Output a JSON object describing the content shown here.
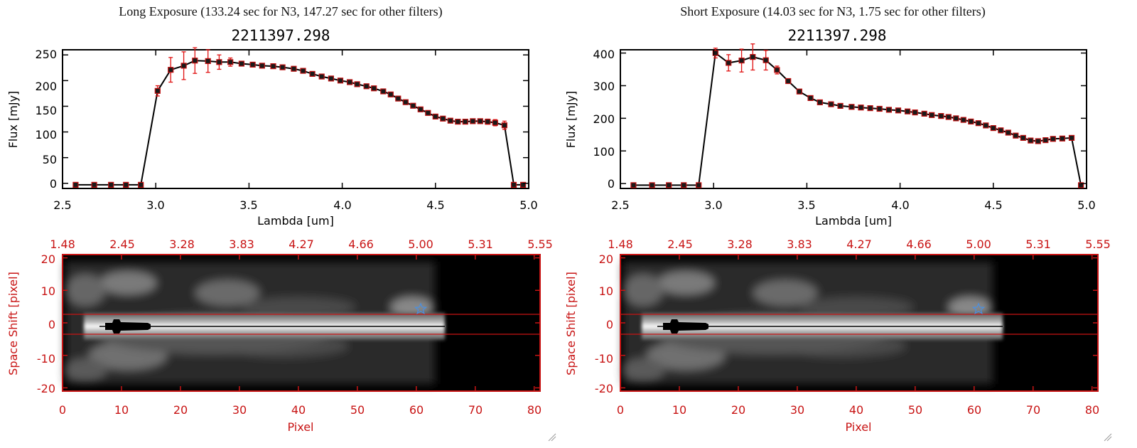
{
  "panels": [
    {
      "header": "Long Exposure (133.24 sec for N3, 147.27 sec for other filters)",
      "spectrum": {
        "title": "2211397.298",
        "xlabel": "Lambda [um]",
        "ylabel": "Flux [mJy]",
        "xlim": [
          2.5,
          5.0
        ],
        "ylim": [
          -10,
          260
        ],
        "xticks": [
          "2.5",
          "3.0",
          "3.5",
          "4.0",
          "4.5",
          "5.0"
        ],
        "xtick_values": [
          2.5,
          3.0,
          3.5,
          4.0,
          4.5,
          5.0
        ],
        "yticks": [
          "0",
          "50",
          "100",
          "150",
          "200",
          "250"
        ],
        "ytick_values": [
          0,
          50,
          100,
          150,
          200,
          250
        ]
      },
      "image": {
        "xlabel": "Pixel",
        "ylabel": "Space Shift [pixel]",
        "xlim": [
          0,
          81
        ],
        "ylim": [
          -21,
          21
        ],
        "bottom_ticks": [
          "0",
          "10",
          "20",
          "30",
          "40",
          "50",
          "60",
          "70",
          "80"
        ],
        "bottom_tick_values": [
          0,
          10,
          20,
          30,
          40,
          50,
          60,
          70,
          80
        ],
        "top_ticks": [
          "1.48",
          "2.45",
          "3.28",
          "3.83",
          "4.27",
          "4.66",
          "5.00",
          "5.31",
          "5.55"
        ],
        "left_ticks": [
          "20",
          "10",
          "0",
          "-10",
          "-20"
        ],
        "left_tick_values": [
          20,
          10,
          0,
          -10,
          -20
        ]
      }
    },
    {
      "header": "Short Exposure (14.03 sec for N3, 1.75 sec for other filters)",
      "spectrum": {
        "title": "2211397.298",
        "xlabel": "Lambda [um]",
        "ylabel": "Flux [mJy]",
        "xlim": [
          2.5,
          5.0
        ],
        "ylim": [
          -15,
          410
        ],
        "xticks": [
          "2.5",
          "3.0",
          "3.5",
          "4.0",
          "4.5",
          "5.0"
        ],
        "xtick_values": [
          2.5,
          3.0,
          3.5,
          4.0,
          4.5,
          5.0
        ],
        "yticks": [
          "0",
          "100",
          "200",
          "300",
          "400"
        ],
        "ytick_values": [
          0,
          100,
          200,
          300,
          400
        ]
      },
      "image": {
        "xlabel": "Pixel",
        "ylabel": "Space Shift [pixel]",
        "xlim": [
          0,
          81
        ],
        "ylim": [
          -21,
          21
        ],
        "bottom_ticks": [
          "0",
          "10",
          "20",
          "30",
          "40",
          "50",
          "60",
          "70",
          "80"
        ],
        "bottom_tick_values": [
          0,
          10,
          20,
          30,
          40,
          50,
          60,
          70,
          80
        ],
        "top_ticks": [
          "1.48",
          "2.45",
          "3.28",
          "3.83",
          "4.27",
          "4.66",
          "5.00",
          "5.31",
          "5.55"
        ],
        "left_ticks": [
          "20",
          "10",
          "0",
          "-10",
          "-20"
        ],
        "left_tick_values": [
          20,
          10,
          0,
          -10,
          -20
        ]
      }
    }
  ],
  "chart_data": [
    {
      "type": "line",
      "title": "2211397.298",
      "xlabel": "Lambda [um]",
      "ylabel": "Flux [mJy]",
      "xlim": [
        2.5,
        5.0
      ],
      "ylim": [
        -10,
        260
      ],
      "x": [
        2.57,
        2.67,
        2.76,
        2.84,
        2.92,
        3.01,
        3.08,
        3.15,
        3.21,
        3.28,
        3.34,
        3.4,
        3.46,
        3.52,
        3.57,
        3.63,
        3.68,
        3.74,
        3.79,
        3.84,
        3.89,
        3.94,
        3.99,
        4.04,
        4.08,
        4.13,
        4.17,
        4.22,
        4.26,
        4.3,
        4.34,
        4.38,
        4.42,
        4.46,
        4.5,
        4.54,
        4.58,
        4.62,
        4.66,
        4.7,
        4.74,
        4.78,
        4.82,
        4.87,
        4.92,
        4.97
      ],
      "y": [
        -3,
        -3,
        -3,
        -3,
        -3,
        180,
        221,
        229,
        239,
        238,
        236,
        236,
        233,
        231,
        229,
        228,
        226,
        223,
        219,
        213,
        208,
        204,
        200,
        197,
        193,
        189,
        185,
        179,
        173,
        165,
        158,
        151,
        144,
        137,
        130,
        126,
        122,
        120,
        120,
        121,
        121,
        120,
        118,
        113,
        -3,
        -3
      ],
      "yerr": [
        0,
        0,
        0,
        0,
        0,
        10,
        24,
        27,
        25,
        22,
        14,
        8,
        4,
        3,
        2,
        2,
        2,
        2,
        2,
        2,
        2,
        2,
        2,
        2,
        2,
        2,
        2,
        2,
        2,
        2,
        2,
        2,
        2,
        2,
        2,
        2,
        2,
        2,
        2,
        3,
        4,
        5,
        6,
        8,
        0,
        0
      ],
      "markers": "filled squares",
      "errorbar_color": "#e01010",
      "line_color": "#000000"
    },
    {
      "type": "line",
      "title": "2211397.298",
      "xlabel": "Lambda [um]",
      "ylabel": "Flux [mJy]",
      "xlim": [
        2.5,
        5.0
      ],
      "ylim": [
        -15,
        410
      ],
      "x": [
        2.57,
        2.67,
        2.76,
        2.84,
        2.92,
        3.01,
        3.08,
        3.15,
        3.21,
        3.28,
        3.34,
        3.4,
        3.46,
        3.52,
        3.57,
        3.63,
        3.68,
        3.74,
        3.79,
        3.84,
        3.89,
        3.94,
        3.99,
        4.04,
        4.08,
        4.13,
        4.17,
        4.22,
        4.26,
        4.3,
        4.34,
        4.38,
        4.42,
        4.46,
        4.5,
        4.54,
        4.58,
        4.62,
        4.66,
        4.7,
        4.74,
        4.78,
        4.82,
        4.87,
        4.92,
        4.97
      ],
      "y": [
        -5,
        -5,
        -5,
        -5,
        -5,
        400,
        370,
        377,
        388,
        378,
        348,
        314,
        282,
        262,
        249,
        243,
        238,
        235,
        233,
        231,
        229,
        226,
        224,
        221,
        218,
        214,
        210,
        207,
        204,
        200,
        195,
        190,
        185,
        178,
        170,
        163,
        156,
        147,
        140,
        132,
        130,
        133,
        137,
        138,
        140,
        -5
      ],
      "yerr": [
        0,
        0,
        0,
        0,
        0,
        15,
        25,
        35,
        40,
        30,
        12,
        6,
        4,
        3,
        2,
        2,
        2,
        2,
        2,
        2,
        2,
        2,
        2,
        2,
        2,
        2,
        2,
        2,
        2,
        2,
        2,
        2,
        2,
        2,
        2,
        2,
        2,
        2,
        2,
        3,
        3,
        3,
        3,
        4,
        5,
        0
      ],
      "markers": "filled squares",
      "errorbar_color": "#e01010",
      "line_color": "#000000"
    },
    {
      "type": "heatmap",
      "xlabel": "Pixel",
      "ylabel": "Space Shift [pixel]",
      "xlim": [
        0,
        81
      ],
      "ylim": [
        -21,
        21
      ],
      "top_ticks": [
        "1.48",
        "2.45",
        "3.28",
        "3.83",
        "4.27",
        "4.66",
        "5.00",
        "5.31",
        "5.55"
      ],
      "trace_center": 0,
      "trace_extent_pixel": [
        7,
        65
      ],
      "aperture_lines": [
        -3,
        3
      ],
      "star_marker": {
        "pixel": 60.5,
        "shift": 4.5
      },
      "aperture_color": "#c81414",
      "star_color": "#4a90e2"
    }
  ]
}
